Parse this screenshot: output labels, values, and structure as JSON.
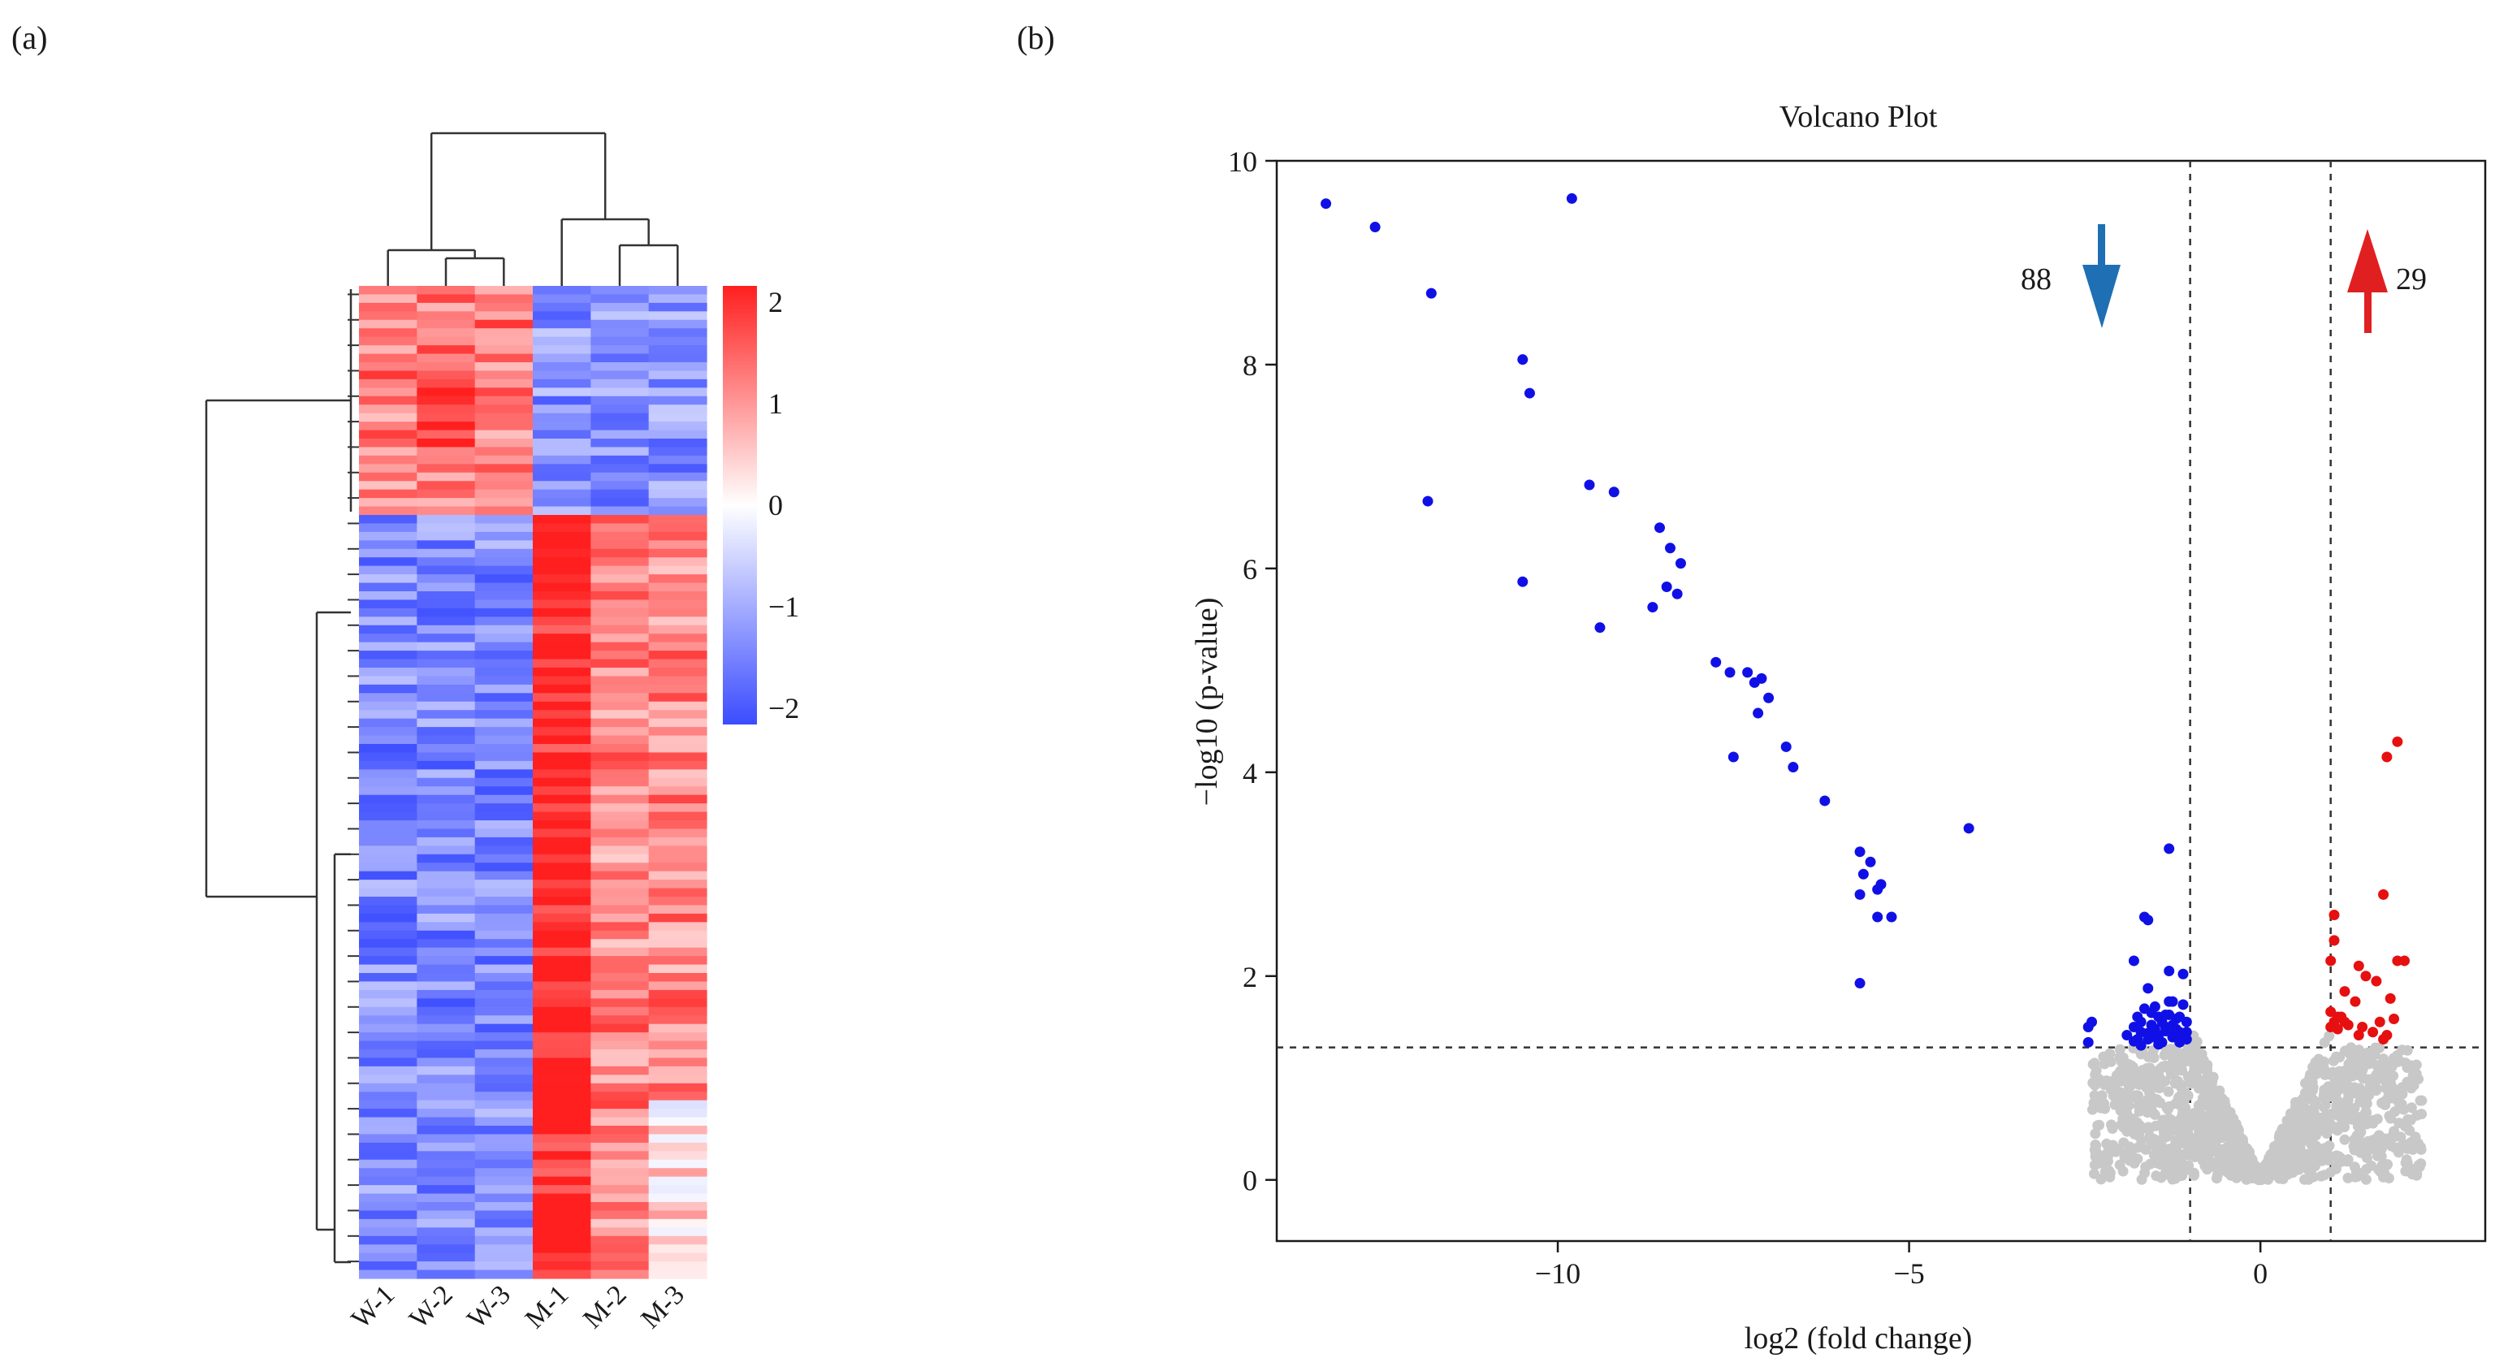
{
  "panels": {
    "a_label": "(a)",
    "b_label": "(b)"
  },
  "chart_data": [
    {
      "type": "heatmap",
      "panel": "(a)",
      "columns": [
        "W-1",
        "W-2",
        "W-3",
        "M-1",
        "M-2",
        "M-3"
      ],
      "colorbar": {
        "ticks": [
          2,
          1,
          0,
          -1,
          -2
        ],
        "tick_labels": [
          "2",
          "1",
          "0",
          "−1",
          "−2"
        ],
        "range": [
          -2,
          2
        ],
        "colors": {
          "low": "#3b4cff",
          "mid": "#ffffff",
          "high": "#ff1f1f"
        }
      },
      "n_rows": 117,
      "row_groups": [
        {
          "name_hidden": true,
          "rows": 27,
          "W_mean": 1.2,
          "M_mean": -1.2
        },
        {
          "name_hidden": true,
          "rows": 90,
          "W_mean": -1.3,
          "M_mean": 1.1
        }
      ],
      "column_dendrogram": "((W-1,(W-2,W-3)),(M-1,(M-2,M-3)))",
      "row_dendrogram": "present"
    },
    {
      "type": "scatter",
      "panel": "(b)",
      "title": "Volcano Plot",
      "xlabel": "log2 (fold change)",
      "ylabel": "−log10 (p-value)",
      "xlim": [
        -14,
        3.2
      ],
      "ylim": [
        -0.6,
        10
      ],
      "xticks": [
        -10,
        -5,
        0
      ],
      "xtick_labels": [
        "−10",
        "−5",
        "0"
      ],
      "yticks": [
        0,
        2,
        4,
        6,
        8,
        10
      ],
      "ytick_labels": [
        "0",
        "2",
        "4",
        "6",
        "8",
        "10"
      ],
      "thresholds": {
        "x": [
          -1,
          1
        ],
        "y": 1.3
      },
      "colors": {
        "down": "#1010e6",
        "up": "#e61010",
        "ns": "#c8c8c8",
        "down_arrow": "#1f6fb4",
        "up_arrow": "#e02020"
      },
      "annotations": {
        "down_count": "88",
        "up_count": "29"
      },
      "series": [
        {
          "name": "down",
          "points": [
            [
              -13.3,
              9.58
            ],
            [
              -12.6,
              9.35
            ],
            [
              -11.8,
              8.7
            ],
            [
              -11.85,
              6.66
            ],
            [
              -10.5,
              8.05
            ],
            [
              -10.4,
              7.72
            ],
            [
              -10.5,
              5.87
            ],
            [
              -9.8,
              9.63
            ],
            [
              -9.55,
              6.82
            ],
            [
              -9.2,
              6.75
            ],
            [
              -9.4,
              5.42
            ],
            [
              -8.55,
              6.4
            ],
            [
              -8.4,
              6.2
            ],
            [
              -8.25,
              6.05
            ],
            [
              -8.65,
              5.62
            ],
            [
              -8.45,
              5.82
            ],
            [
              -8.3,
              5.75
            ],
            [
              -7.75,
              5.08
            ],
            [
              -7.55,
              4.98
            ],
            [
              -7.3,
              4.98
            ],
            [
              -7.2,
              4.88
            ],
            [
              -7.1,
              4.92
            ],
            [
              -7.0,
              4.73
            ],
            [
              -7.15,
              4.58
            ],
            [
              -7.5,
              4.15
            ],
            [
              -6.75,
              4.25
            ],
            [
              -6.65,
              4.05
            ],
            [
              -6.2,
              3.72
            ],
            [
              -4.15,
              3.45
            ],
            [
              -5.7,
              3.22
            ],
            [
              -5.55,
              3.12
            ],
            [
              -5.65,
              3.0
            ],
            [
              -5.45,
              2.85
            ],
            [
              -5.4,
              2.9
            ],
            [
              -5.7,
              2.8
            ],
            [
              -5.45,
              2.58
            ],
            [
              -5.25,
              2.58
            ],
            [
              -5.7,
              1.93
            ],
            [
              -1.3,
              3.25
            ],
            [
              -1.65,
              2.58
            ],
            [
              -1.6,
              2.55
            ],
            [
              -1.8,
              2.15
            ],
            [
              -1.3,
              2.05
            ],
            [
              -1.1,
              2.02
            ],
            [
              -1.6,
              1.88
            ],
            [
              -1.3,
              1.75
            ],
            [
              -1.5,
              1.7
            ],
            [
              -2.4,
              1.55
            ],
            [
              -2.45,
              1.5
            ],
            [
              -1.75,
              1.6
            ],
            [
              -1.45,
              1.6
            ],
            [
              -1.15,
              1.6
            ],
            [
              -1.25,
              1.75
            ],
            [
              -1.05,
              1.55
            ],
            [
              -1.55,
              1.52
            ],
            [
              -1.35,
              1.5
            ],
            [
              -1.2,
              1.48
            ],
            [
              -1.7,
              1.45
            ],
            [
              -1.45,
              1.42
            ],
            [
              -1.25,
              1.4
            ],
            [
              -1.1,
              1.4
            ],
            [
              -2.45,
              1.35
            ],
            [
              -1.6,
              1.38
            ],
            [
              -1.4,
              1.35
            ],
            [
              -1.15,
              1.35
            ],
            [
              -1.7,
              1.32
            ],
            [
              -1.05,
              1.45
            ],
            [
              -1.8,
              1.5
            ],
            [
              -1.55,
              1.4
            ],
            [
              -1.3,
              1.62
            ],
            [
              -1.65,
              1.68
            ],
            [
              -1.2,
              1.58
            ],
            [
              -1.35,
              1.46
            ],
            [
              -1.75,
              1.38
            ],
            [
              -1.5,
              1.48
            ],
            [
              -1.25,
              1.52
            ],
            [
              -1.05,
              1.38
            ],
            [
              -1.4,
              1.55
            ],
            [
              -1.9,
              1.42
            ],
            [
              -1.6,
              1.44
            ],
            [
              -1.15,
              1.45
            ],
            [
              -1.45,
              1.33
            ],
            [
              -1.8,
              1.36
            ],
            [
              -1.35,
              1.62
            ],
            [
              -1.55,
              1.64
            ],
            [
              -1.1,
              1.72
            ],
            [
              -1.7,
              1.55
            ],
            [
              -1.25,
              1.42
            ]
          ]
        },
        {
          "name": "up",
          "points": [
            [
              1.95,
              4.3
            ],
            [
              1.8,
              4.15
            ],
            [
              1.75,
              2.8
            ],
            [
              1.05,
              2.6
            ],
            [
              1.05,
              2.35
            ],
            [
              1.0,
              2.15
            ],
            [
              2.05,
              2.15
            ],
            [
              1.95,
              2.15
            ],
            [
              1.4,
              2.1
            ],
            [
              1.5,
              2.0
            ],
            [
              1.65,
              1.95
            ],
            [
              1.2,
              1.85
            ],
            [
              1.85,
              1.78
            ],
            [
              1.35,
              1.75
            ],
            [
              1.0,
              1.65
            ],
            [
              1.1,
              1.6
            ],
            [
              1.2,
              1.55
            ],
            [
              1.05,
              1.55
            ],
            [
              1.25,
              1.52
            ],
            [
              1.9,
              1.58
            ],
            [
              1.7,
              1.55
            ],
            [
              1.6,
              1.45
            ],
            [
              1.45,
              1.5
            ],
            [
              1.1,
              1.48
            ],
            [
              1.8,
              1.42
            ],
            [
              1.75,
              1.38
            ],
            [
              1.4,
              1.42
            ],
            [
              1.0,
              1.5
            ],
            [
              1.15,
              1.6
            ]
          ]
        }
      ]
    }
  ]
}
